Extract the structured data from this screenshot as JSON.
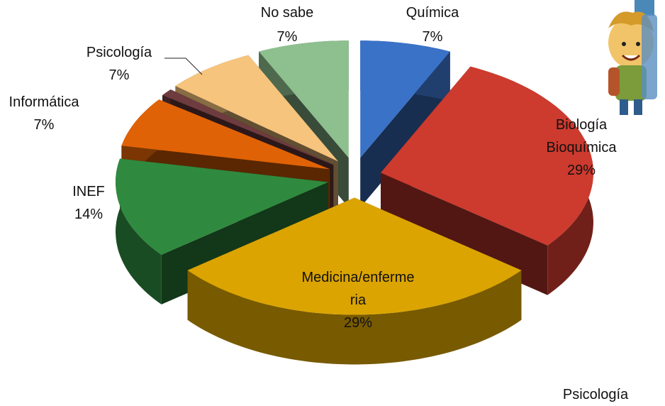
{
  "chart_data": {
    "type": "pie3d",
    "categories": [
      "Química",
      "Biología Bioquímica",
      "Medicina/enfermeria",
      "INEF",
      "Informática",
      null,
      "Psicología",
      "No sabe"
    ],
    "values": [
      7,
      29,
      29,
      14,
      7,
      1,
      7,
      7
    ],
    "value_labels": [
      "7%",
      "29%",
      "29%",
      "14%",
      "7%",
      null,
      "7%",
      "7%"
    ],
    "colors": [
      "#3a72c8",
      "#cd3a2e",
      "#dba400",
      "#2f8a3f",
      "#e06206",
      "#6e3b3e",
      "#f6c47c",
      "#8ebf8e"
    ],
    "annotation": "Psicología"
  }
}
